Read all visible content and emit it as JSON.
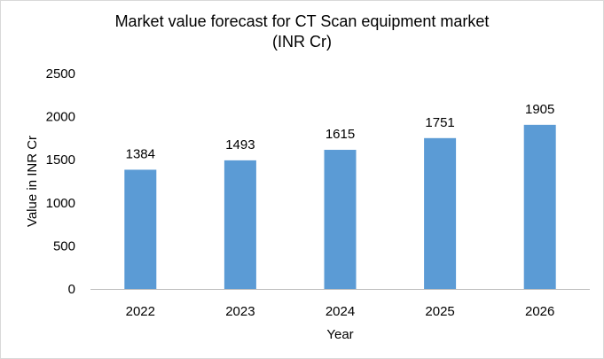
{
  "chart_data": {
    "type": "bar",
    "title_line_1": "Market value forecast for CT Scan equipment market",
    "title_line_2": "(INR Cr)",
    "xlabel": "Year",
    "ylabel": "Value in INR Cr",
    "categories": [
      "2022",
      "2023",
      "2024",
      "2025",
      "2026"
    ],
    "values": [
      1384,
      1493,
      1615,
      1751,
      1905
    ],
    "ylim": [
      0,
      2500
    ],
    "yticks": [
      0,
      500,
      1000,
      1500,
      2000,
      2500
    ],
    "data_labels": true,
    "grid": false,
    "legend": "none",
    "bar_color": "#5b9bd5",
    "axis_color": "#bfbfbf"
  }
}
